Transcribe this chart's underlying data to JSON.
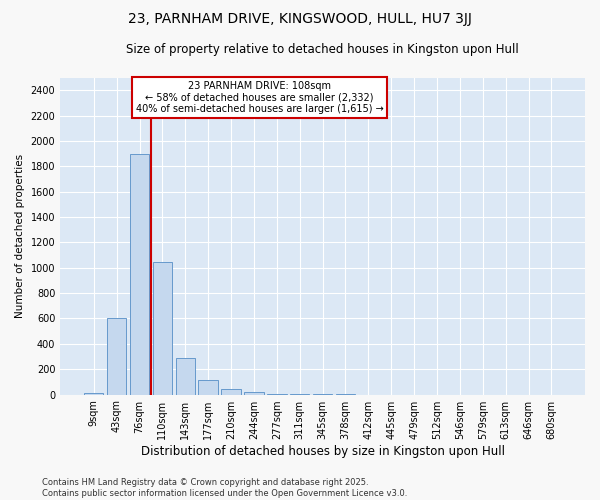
{
  "title": "23, PARNHAM DRIVE, KINGSWOOD, HULL, HU7 3JJ",
  "subtitle": "Size of property relative to detached houses in Kingston upon Hull",
  "xlabel": "Distribution of detached houses by size in Kingston upon Hull",
  "ylabel": "Number of detached properties",
  "categories": [
    "9sqm",
    "43sqm",
    "76sqm",
    "110sqm",
    "143sqm",
    "177sqm",
    "210sqm",
    "244sqm",
    "277sqm",
    "311sqm",
    "345sqm",
    "378sqm",
    "412sqm",
    "445sqm",
    "479sqm",
    "512sqm",
    "546sqm",
    "579sqm",
    "613sqm",
    "646sqm",
    "680sqm"
  ],
  "values": [
    15,
    600,
    1900,
    1045,
    290,
    115,
    45,
    20,
    5,
    2,
    2,
    2,
    0,
    0,
    0,
    0,
    0,
    0,
    0,
    0,
    0
  ],
  "bar_color": "#c5d8ee",
  "bar_edgecolor": "#6699cc",
  "bar_linewidth": 0.7,
  "vline_x": 2.5,
  "vline_color": "#cc0000",
  "vline_linewidth": 1.5,
  "annotation_text": "23 PARNHAM DRIVE: 108sqm\n← 58% of detached houses are smaller (2,332)\n40% of semi-detached houses are larger (1,615) →",
  "annotation_fontsize": 7,
  "annotation_box_color": "#cc0000",
  "footer_text": "Contains HM Land Registry data © Crown copyright and database right 2025.\nContains public sector information licensed under the Open Government Licence v3.0.",
  "ylim": [
    0,
    2500
  ],
  "yticks": [
    0,
    200,
    400,
    600,
    800,
    1000,
    1200,
    1400,
    1600,
    1800,
    2000,
    2200,
    2400
  ],
  "fig_bg_color": "#f8f8f8",
  "ax_bg_color": "#dce8f5",
  "grid_color": "#ffffff",
  "title_fontsize": 10,
  "subtitle_fontsize": 8.5,
  "xlabel_fontsize": 8.5,
  "ylabel_fontsize": 7.5,
  "tick_fontsize": 7,
  "footer_fontsize": 6
}
